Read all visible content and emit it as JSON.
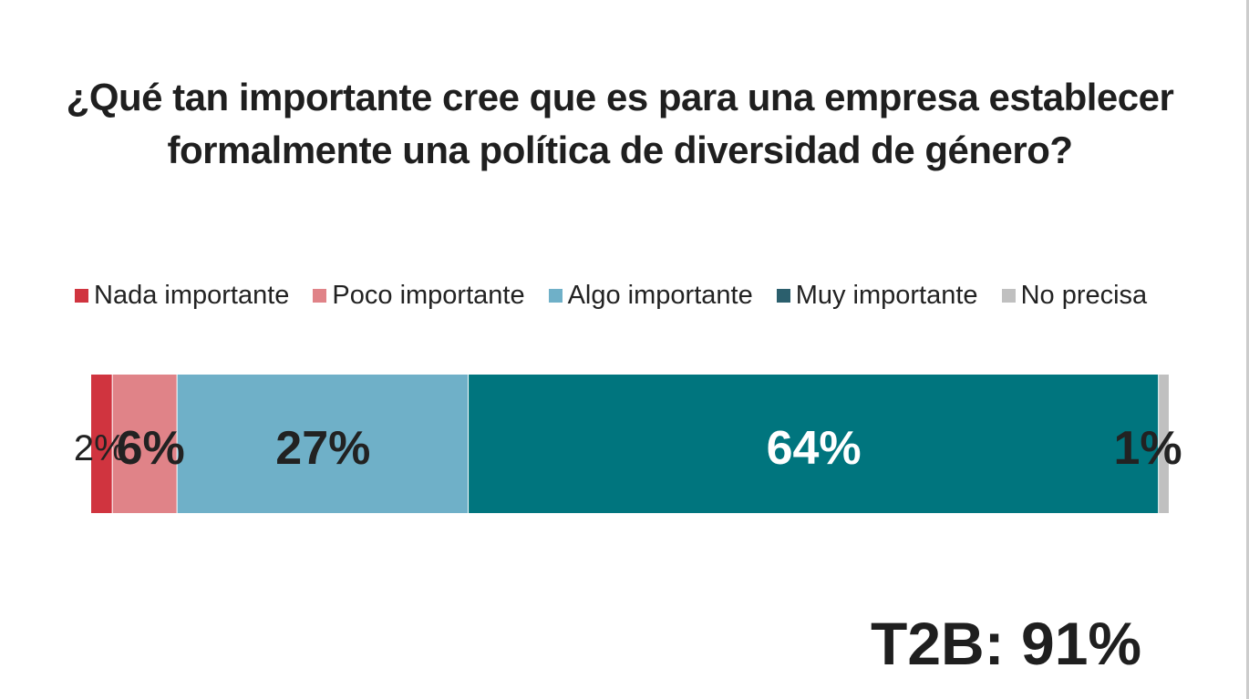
{
  "chart_data": {
    "type": "bar",
    "orientation": "horizontal-stacked",
    "title": "¿Qué tan importante cree que es para una empresa establecer formalmente una política de diversidad de género?",
    "legend_position": "top",
    "series": [
      {
        "name": "Nada importante",
        "value": 2,
        "label": "2%",
        "color": "#d0343f",
        "label_color": "#222222",
        "label_bold": false
      },
      {
        "name": "Poco importante",
        "value": 6,
        "label": "6%",
        "color": "#e08388",
        "label_color": "#222222",
        "label_bold": true
      },
      {
        "name": "Algo importante",
        "value": 27,
        "label": "27%",
        "color": "#6fb0c8",
        "label_color": "#222222",
        "label_bold": true
      },
      {
        "name": "Muy importante",
        "value": 64,
        "label": "64%",
        "color": "#00757e",
        "legend_color": "#2b5f6d",
        "label_color": "#ffffff",
        "label_bold": true
      },
      {
        "name": "No precisa",
        "value": 1,
        "label": "1%",
        "color": "#c0c0c0",
        "label_color": "#222222",
        "label_bold": true
      }
    ],
    "annotation": "T2B: 91%"
  }
}
